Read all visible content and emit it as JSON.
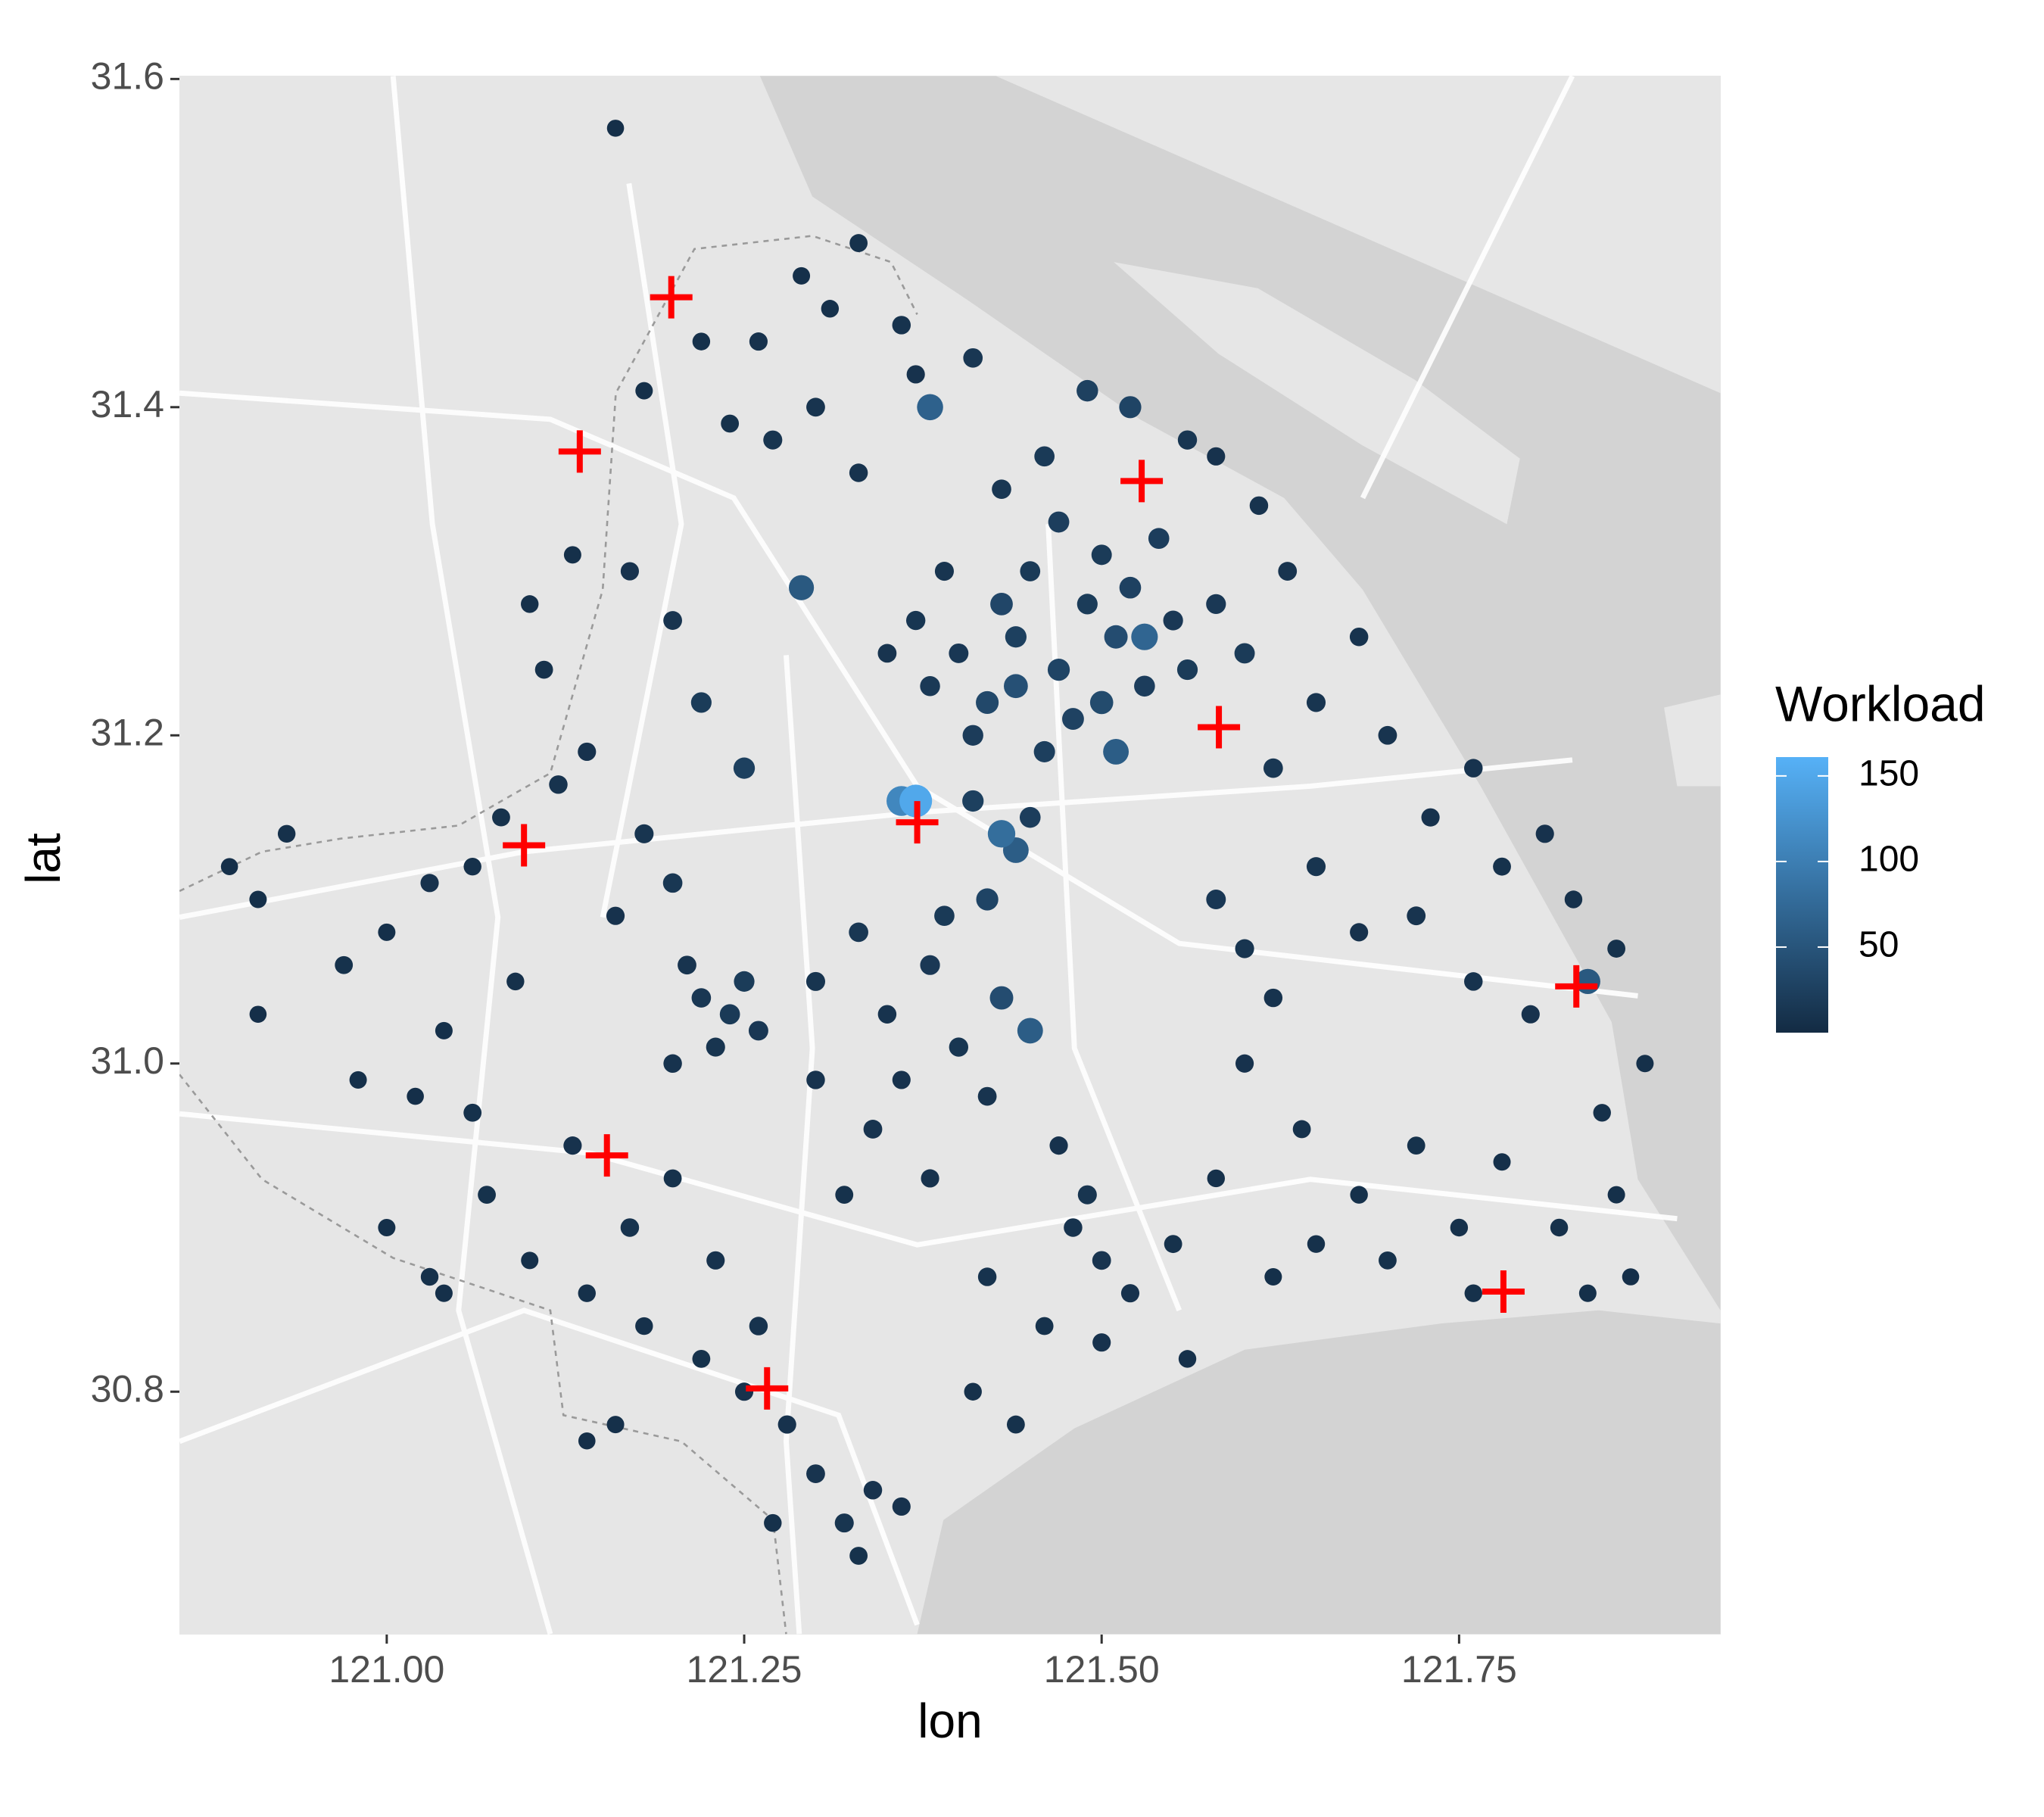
{
  "chart_data": {
    "type": "scatter",
    "x_label": "lon",
    "y_label": "lat",
    "xlim": [
      120.855,
      121.933
    ],
    "ylim": [
      30.652,
      31.602
    ],
    "xticks": [
      {
        "value": 121,
        "label": "121.00"
      },
      121.25,
      {
        "value": 121.5,
        "label": "121.50"
      },
      121.75
    ],
    "yticks": [
      30.8,
      {
        "value": 31,
        "label": "31.0"
      },
      31.2,
      31.4,
      31.6
    ],
    "x": [
      121.44,
      121.47,
      121.49,
      121.42,
      121.45,
      121.51,
      121.53,
      121.48,
      121.4,
      121.46,
      121.5,
      121.43,
      121.52,
      121.41,
      121.55,
      121.47,
      121.44,
      121.5,
      121.38,
      121.56,
      121.52,
      121.49,
      121.46,
      121.43,
      121.54,
      121.58,
      121.6,
      121.37,
      121.39,
      121.35,
      121.41,
      121.44,
      121.42,
      121.39,
      121.45,
      121.36,
      121.37,
      121.53,
      121.43,
      121.29,
      121.51,
      121.38,
      121.45,
      121.84,
      121.33,
      121.29,
      121.36,
      121.31,
      121.26,
      121.27,
      121.24,
      121.3,
      121.33,
      121.37,
      121.41,
      121.16,
      121.18,
      121.22,
      120.89,
      120.91,
      120.93,
      120.91,
      120.97,
      121.0,
      121.03,
      121.06,
      121.08,
      121.12,
      121.14,
      121.11,
      121.1,
      121.13,
      121.17,
      121.2,
      121.22,
      121.25,
      121.18,
      121.16,
      121.2,
      121.09,
      121.04,
      121.02,
      121.06,
      120.98,
      121.0,
      121.03,
      121.07,
      121.1,
      121.13,
      121.17,
      121.14,
      121.2,
      121.23,
      121.18,
      121.22,
      121.26,
      121.28,
      121.3,
      121.32,
      121.34,
      121.36,
      121.33,
      121.27,
      121.25,
      121.16,
      121.14,
      121.04,
      121.22,
      121.24,
      121.23,
      121.25,
      121.21,
      121.26,
      121.2,
      121.3,
      121.33,
      121.35,
      121.38,
      121.4,
      121.42,
      121.47,
      121.49,
      121.48,
      121.5,
      121.52,
      121.46,
      121.42,
      121.38,
      121.34,
      121.32,
      121.3,
      121.36,
      121.41,
      121.44,
      121.5,
      121.56,
      121.55,
      121.58,
      121.43,
      121.62,
      121.65,
      121.68,
      121.7,
      121.73,
      121.76,
      121.78,
      121.81,
      121.83,
      121.86,
      121.88,
      121.85,
      121.8,
      121.76,
      121.72,
      121.68,
      121.65,
      121.62,
      121.6,
      121.64,
      121.68,
      121.72,
      121.75,
      121.78,
      121.82,
      121.86,
      121.87,
      121.84,
      121.76,
      121.7,
      121.65,
      121.62,
      121.58,
      121.6,
      121.63,
      121.61,
      121.58,
      121.56
    ],
    "y": [
      31.26,
      31.24,
      31.28,
      31.22,
      31.3,
      31.26,
      31.23,
      31.21,
      31.25,
      31.19,
      31.31,
      31.28,
      31.29,
      31.2,
      31.27,
      31.33,
      31.23,
      31.22,
      31.23,
      31.24,
      31.4,
      31.41,
      31.37,
      31.35,
      31.32,
      31.28,
      31.25,
      31.27,
      31.3,
      31.25,
      31.16,
      31.13,
      31.1,
      31.09,
      31.15,
      31.16,
      31.16,
      31.26,
      31.14,
      31.29,
      31.19,
      31.4,
      31.02,
      31.05,
      31.5,
      31.48,
      31.45,
      31.46,
      31.44,
      31.38,
      31.39,
      31.4,
      31.36,
      31.42,
      31.43,
      31.57,
      31.41,
      31.44,
      31.12,
      31.1,
      31.14,
      31.03,
      31.06,
      31.08,
      31.11,
      31.12,
      31.15,
      31.17,
      31.19,
      31.24,
      31.28,
      31.31,
      31.3,
      31.27,
      31.22,
      31.18,
      31.14,
      31.09,
      31.11,
      31.05,
      31.02,
      30.98,
      30.97,
      30.99,
      30.9,
      30.87,
      30.92,
      30.88,
      30.95,
      30.9,
      30.86,
      30.93,
      30.88,
      30.84,
      30.82,
      30.84,
      30.78,
      30.75,
      30.72,
      30.74,
      30.73,
      30.7,
      30.72,
      30.8,
      30.78,
      30.77,
      30.86,
      31.04,
      31.03,
      31.01,
      31.05,
      31.06,
      31.02,
      31.0,
      31.05,
      31.08,
      31.03,
      31.06,
      31.01,
      30.98,
      30.95,
      30.92,
      30.9,
      30.88,
      30.86,
      30.84,
      30.87,
      30.93,
      30.96,
      30.92,
      30.99,
      30.99,
      30.8,
      30.78,
      30.83,
      30.82,
      30.89,
      30.93,
      31.04,
      31.18,
      31.22,
      31.26,
      31.2,
      31.15,
      31.18,
      31.12,
      31.14,
      31.1,
      31.07,
      31.0,
      30.97,
      31.03,
      31.05,
      31.09,
      31.08,
      31.12,
      31.04,
      31.0,
      30.96,
      30.92,
      30.95,
      30.9,
      30.94,
      30.9,
      30.92,
      30.87,
      30.86,
      30.86,
      30.88,
      30.89,
      30.87,
      31.1,
      31.07,
      31.3,
      31.34,
      31.37,
      31.38
    ],
    "values": [
      25,
      30,
      20,
      35,
      18,
      40,
      22,
      28,
      15,
      24,
      19,
      33,
      27,
      21,
      16,
      23,
      45,
      38,
      17,
      20,
      30,
      26,
      18,
      14,
      22,
      16,
      19,
      13,
      12,
      11,
      25,
      60,
      30,
      18,
      22,
      110,
      150,
      70,
      80,
      55,
      60,
      65,
      60,
      55,
      8,
      6,
      10,
      7,
      9,
      12,
      8,
      11,
      10,
      9,
      14,
      5,
      6,
      7,
      5,
      6,
      7,
      5,
      8,
      6,
      9,
      7,
      8,
      10,
      9,
      8,
      7,
      6,
      9,
      11,
      20,
      25,
      12,
      9,
      14,
      7,
      6,
      5,
      8,
      6,
      6,
      7,
      8,
      6,
      9,
      10,
      7,
      8,
      9,
      7,
      8,
      10,
      9,
      11,
      12,
      10,
      9,
      8,
      7,
      9,
      6,
      5,
      6,
      14,
      18,
      12,
      20,
      11,
      15,
      10,
      12,
      14,
      10,
      16,
      13,
      11,
      9,
      12,
      10,
      11,
      9,
      8,
      10,
      9,
      11,
      8,
      10,
      9,
      7,
      8,
      9,
      7,
      8,
      7,
      40,
      14,
      12,
      10,
      11,
      9,
      10,
      8,
      9,
      7,
      8,
      6,
      7,
      9,
      10,
      11,
      9,
      12,
      10,
      9,
      8,
      7,
      8,
      7,
      6,
      7,
      6,
      5,
      6,
      7,
      8,
      7,
      6,
      15,
      12,
      11,
      10,
      9,
      13
    ],
    "colorbar": {
      "title": "Workload",
      "lim": [
        0,
        161
      ],
      "ticks": [
        50,
        100,
        150
      ],
      "colors": [
        "#132b43",
        "#56b1f7"
      ]
    },
    "centers": {
      "color": "#ff0000",
      "x": [
        121.199,
        121.135,
        121.528,
        121.582,
        121.371,
        121.096,
        121.832,
        121.154,
        121.781,
        121.266
      ],
      "y": [
        31.467,
        31.373,
        31.355,
        31.205,
        31.147,
        31.133,
        31.047,
        30.944,
        30.861,
        30.802
      ]
    }
  }
}
